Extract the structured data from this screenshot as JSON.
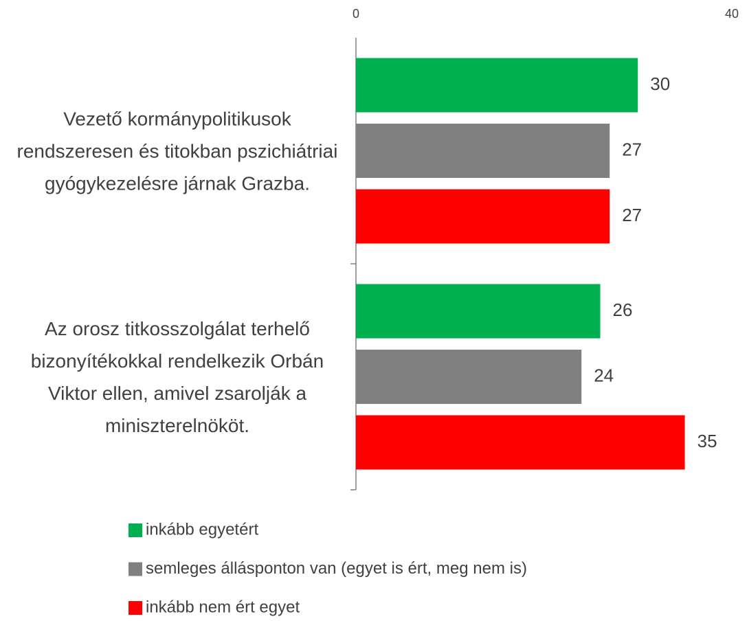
{
  "chart_data": {
    "type": "barh",
    "categories": [
      "Vezető kormánypolitikusok rendszeresen és titokban pszichiátriai gyógykezelésre járnak Grazba.",
      "Az orosz titkosszolgálat terhelő bizonyítékokkal rendelkezik Orbán Viktor ellen, amivel zsarolják a miniszterelnököt."
    ],
    "series": [
      {
        "name": "inkább egyetért",
        "color": "#00b050",
        "values": [
          30,
          26
        ]
      },
      {
        "name": "semleges állásponton van (egyet is ért, meg nem is)",
        "color": "#808080",
        "values": [
          27,
          24
        ]
      },
      {
        "name": "inkább nem ért egyet",
        "color": "#ff0000",
        "values": [
          27,
          35
        ]
      }
    ],
    "xlim": [
      0,
      40
    ],
    "xticks": [
      0,
      40
    ]
  }
}
